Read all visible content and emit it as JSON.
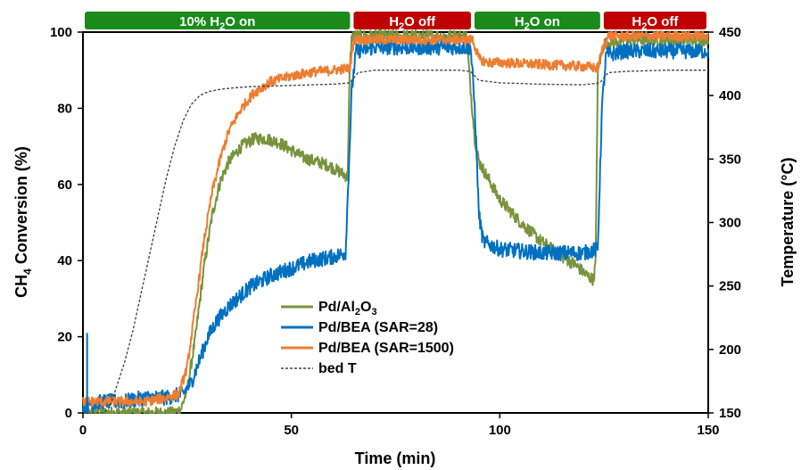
{
  "chart_data": {
    "type": "line",
    "xlabel": "Time (min)",
    "ylabel": "CH4 Conversion (%)",
    "ylabel_parts": {
      "main": "CH",
      "sub": "4",
      "rest": " Conversion (%)"
    },
    "y2label": "Temperature (°C)",
    "xlim": [
      0,
      150
    ],
    "ylim": [
      0,
      100
    ],
    "y2lim": [
      150,
      450
    ],
    "xticks": [
      "0",
      "50",
      "100",
      "150"
    ],
    "yticks": [
      "0",
      "20",
      "40",
      "60",
      "80",
      "100"
    ],
    "y2ticks": [
      "150",
      "200",
      "250",
      "300",
      "350",
      "400",
      "450"
    ],
    "grid": false,
    "legend_position": "center",
    "phases": [
      {
        "label": "10% H2O on",
        "label_parts": [
          "10% H",
          "2",
          "O on"
        ],
        "start": 0,
        "end": 64.5,
        "color": "#1a8a1a"
      },
      {
        "label": "H2O off",
        "label_parts": [
          "H",
          "2",
          "O off"
        ],
        "start": 64.5,
        "end": 93.5,
        "color": "#c00000"
      },
      {
        "label": "H2O on",
        "label_parts": [
          "H",
          "2",
          "O on"
        ],
        "start": 93.5,
        "end": 124.5,
        "color": "#1a8a1a"
      },
      {
        "label": "H2O off",
        "label_parts": [
          "H",
          "2",
          "O off"
        ],
        "start": 124.5,
        "end": 150,
        "color": "#c00000"
      }
    ],
    "series": [
      {
        "name": "Pd/Al2O3",
        "name_parts": [
          "Pd/Al",
          "2",
          "O",
          "3"
        ],
        "axis": "left",
        "color": "#77933c",
        "style": "solid",
        "noise": 1.6,
        "x": [
          0,
          22,
          23.5,
          25,
          27,
          29,
          31,
          33,
          35,
          38,
          41,
          44,
          47,
          50,
          53,
          56,
          59,
          62,
          63.5,
          64,
          64.5,
          70,
          80,
          90,
          92,
          93,
          94,
          95,
          97,
          100,
          105,
          110,
          115,
          118,
          121,
          122.5,
          123,
          123.5,
          125,
          130,
          140,
          150
        ],
        "y": [
          0,
          0,
          1,
          6,
          20,
          38,
          52,
          61,
          66,
          70,
          72,
          72,
          71,
          69,
          67,
          66,
          65,
          63,
          62,
          90,
          99,
          99,
          99,
          99,
          99,
          85,
          72,
          66,
          62,
          56,
          50,
          45,
          41,
          39,
          36,
          35,
          40,
          90,
          97,
          98,
          98,
          98
        ]
      },
      {
        "name": "Pd/BEA (SAR=28)",
        "name_parts": [
          "Pd/BEA (SAR=28)"
        ],
        "axis": "left",
        "color": "#0070c0",
        "style": "solid",
        "noise": 2.0,
        "x": [
          0,
          5,
          10,
          15,
          20,
          24,
          26,
          28,
          30,
          32,
          35,
          40,
          45,
          50,
          55,
          60,
          63,
          64.5,
          65.5,
          70,
          80,
          90,
          93,
          94,
          95,
          96,
          100,
          110,
          120,
          123.5,
          124.5,
          125.5,
          130,
          140,
          150
        ],
        "y": [
          2,
          3,
          3,
          4,
          4,
          5,
          8,
          14,
          20,
          24,
          28,
          33,
          36,
          38,
          40,
          41,
          42,
          85,
          95,
          96,
          96,
          96,
          96,
          80,
          52,
          45,
          43,
          42,
          42,
          43,
          80,
          94,
          95,
          95,
          95
        ]
      },
      {
        "name": "Pd/BEA (SAR=1500)",
        "name_parts": [
          "Pd/BEA (SAR=1500)"
        ],
        "axis": "left",
        "color": "#ed7d31",
        "style": "solid",
        "noise": 1.3,
        "x": [
          0,
          5,
          10,
          15,
          20,
          23,
          25,
          27,
          29,
          31,
          33,
          35,
          38,
          41,
          45,
          50,
          55,
          60,
          64,
          65,
          70,
          80,
          90,
          93.5,
          95,
          97,
          100,
          110,
          120,
          123.5,
          124.5,
          126,
          130,
          140,
          150
        ],
        "y": [
          3,
          3,
          3,
          3,
          4,
          5,
          12,
          28,
          45,
          58,
          67,
          74,
          80,
          84,
          87,
          88.5,
          89.5,
          90,
          90.5,
          98,
          98,
          98,
          98,
          98,
          93,
          92,
          92,
          91.5,
          91,
          90.5,
          95,
          99,
          99,
          99,
          99
        ]
      },
      {
        "name": "bed T",
        "name_parts": [
          "bed T"
        ],
        "axis": "right",
        "color": "#404040",
        "style": "dashed",
        "noise": 0,
        "x": [
          0,
          5,
          6.5,
          8,
          10,
          12,
          14,
          16,
          18,
          20,
          22,
          24,
          26,
          28,
          30,
          33,
          36,
          40,
          50,
          60,
          64,
          66,
          70,
          80,
          90,
          93,
          95,
          100,
          110,
          120,
          124,
          126,
          130,
          140,
          150
        ],
        "y": [
          150,
          150,
          155,
          170,
          190,
          215,
          245,
          275,
          305,
          335,
          360,
          380,
          393,
          400,
          403,
          405,
          406,
          407,
          408,
          409,
          410,
          418,
          420,
          420,
          420,
          419,
          412,
          410,
          409,
          408.5,
          410,
          418,
          419,
          420,
          420
        ]
      }
    ],
    "artifacts": [
      {
        "series": "Pd/BEA (SAR=28)",
        "x": 1,
        "y": 21
      }
    ]
  }
}
